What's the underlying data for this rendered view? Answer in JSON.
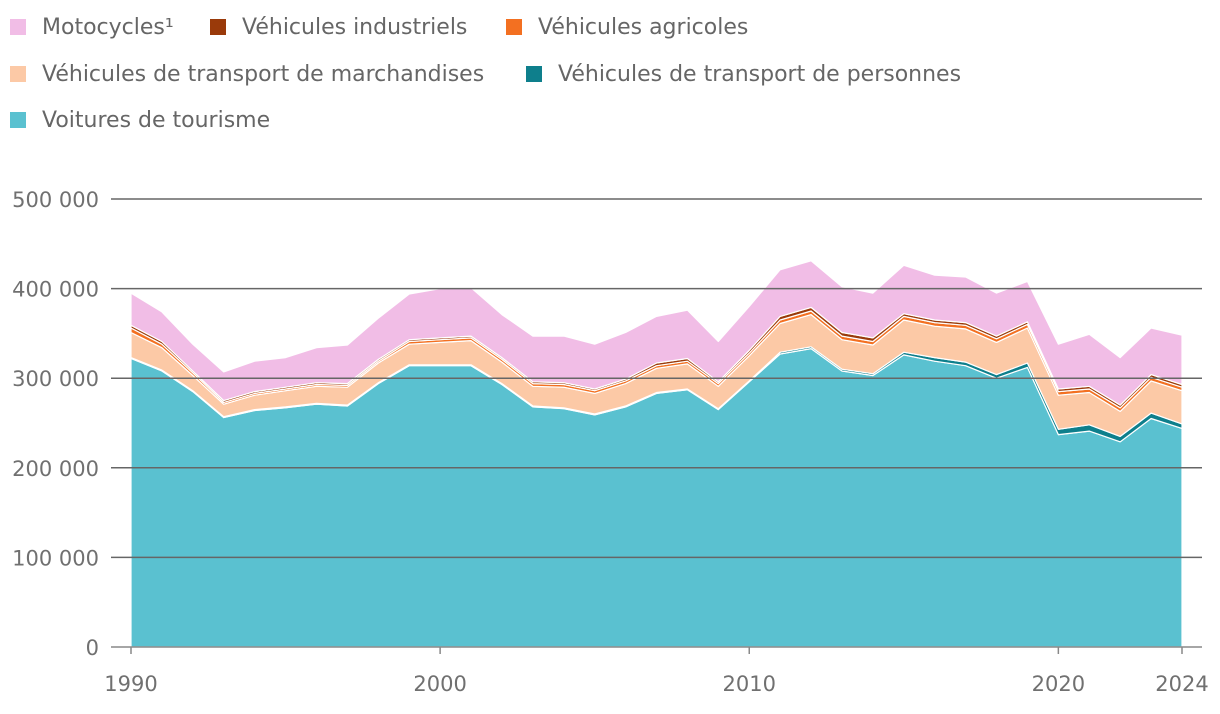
{
  "chart_data": {
    "type": "area",
    "stacked": true,
    "title": "",
    "xlabel": "",
    "ylabel": "",
    "ylim": [
      0,
      500000
    ],
    "yticks": [
      0,
      100000,
      200000,
      300000,
      400000,
      500000
    ],
    "ytick_labels": [
      "0",
      "100 000",
      "200 000",
      "300 000",
      "400 000",
      "500 000"
    ],
    "xticks": [
      1990,
      2000,
      2010,
      2020,
      2024
    ],
    "xtick_labels": [
      "1990",
      "2000",
      "2010",
      "2020",
      "2024"
    ],
    "x": [
      1990,
      1991,
      1992,
      1993,
      1994,
      1995,
      1996,
      1997,
      1998,
      1999,
      2000,
      2001,
      2002,
      2003,
      2004,
      2005,
      2006,
      2007,
      2008,
      2009,
      2010,
      2011,
      2012,
      2013,
      2014,
      2015,
      2016,
      2017,
      2018,
      2019,
      2020,
      2021,
      2022,
      2023,
      2024
    ],
    "legend_position": "top",
    "series": [
      {
        "name": "Voitures de tourisme",
        "color": "#5ac1d0",
        "values": [
          322000,
          308000,
          285000,
          256000,
          264000,
          267000,
          271000,
          269000,
          294000,
          314000,
          314000,
          314000,
          293000,
          268000,
          266000,
          259000,
          268000,
          283000,
          287000,
          265000,
          296000,
          327000,
          333000,
          308000,
          303000,
          326000,
          319000,
          314000,
          300000,
          312000,
          237000,
          241000,
          229000,
          255000,
          244000
        ]
      },
      {
        "name": "Véhicules de transport de personnes",
        "color": "#0e7f8c",
        "values": [
          1000,
          1000,
          1000,
          1000,
          1000,
          1000,
          1000,
          1000,
          1000,
          1000,
          1000,
          1000,
          1000,
          1000,
          1000,
          1000,
          1000,
          1000,
          1000,
          1000,
          1000,
          2000,
          2000,
          2000,
          2000,
          3000,
          4000,
          4000,
          4000,
          5000,
          6000,
          7000,
          6000,
          6000,
          5000
        ]
      },
      {
        "name": "Véhicules de transport de marchandises",
        "color": "#fcc9a6",
        "values": [
          28000,
          25000,
          17000,
          14000,
          16000,
          18000,
          19000,
          20000,
          22000,
          23000,
          25000,
          27000,
          24000,
          22000,
          23000,
          23000,
          25000,
          27000,
          28000,
          25000,
          28000,
          32000,
          36000,
          33000,
          32000,
          36000,
          35000,
          37000,
          36000,
          39000,
          38000,
          36000,
          28000,
          36000,
          37000
        ]
      },
      {
        "name": "Véhicules agricoles",
        "color": "#f37021",
        "values": [
          5000,
          4000,
          3000,
          2000,
          2000,
          2000,
          2000,
          2000,
          2000,
          3000,
          3000,
          3000,
          3000,
          3000,
          3000,
          3000,
          3000,
          3000,
          3000,
          3000,
          3000,
          4000,
          4000,
          4000,
          4000,
          4000,
          4000,
          4000,
          4000,
          4000,
          4000,
          4000,
          4000,
          4000,
          4000
        ]
      },
      {
        "name": "Véhicules industriels",
        "color": "#9a3a0a",
        "values": [
          3000,
          3000,
          2000,
          2000,
          2000,
          2000,
          2000,
          2000,
          2000,
          2000,
          2000,
          2000,
          2000,
          2000,
          2000,
          2000,
          2000,
          3000,
          3000,
          2000,
          3000,
          4000,
          4000,
          4000,
          4000,
          3000,
          3000,
          3000,
          3000,
          3000,
          3000,
          3000,
          3000,
          3000,
          3000
        ]
      },
      {
        "name": "Motocycles¹",
        "color": "#f1bde6",
        "values": [
          36000,
          33000,
          30000,
          32000,
          34000,
          33000,
          39000,
          43000,
          46000,
          51000,
          55000,
          54000,
          48000,
          51000,
          52000,
          50000,
          52000,
          52000,
          54000,
          45000,
          49000,
          52000,
          52000,
          51000,
          50000,
          54000,
          50000,
          51000,
          48000,
          45000,
          50000,
          58000,
          53000,
          52000,
          55000
        ]
      }
    ],
    "legend": [
      {
        "label": "Motocycles¹",
        "color": "#f1bde6"
      },
      {
        "label": "Véhicules industriels",
        "color": "#9a3a0a"
      },
      {
        "label": "Véhicules agricoles",
        "color": "#f37021"
      },
      {
        "label": "Véhicules de transport de marchandises",
        "color": "#fcc9a6"
      },
      {
        "label": "Véhicules de transport de personnes",
        "color": "#0e7f8c"
      },
      {
        "label": "Voitures de tourisme",
        "color": "#5ac1d0"
      }
    ]
  }
}
